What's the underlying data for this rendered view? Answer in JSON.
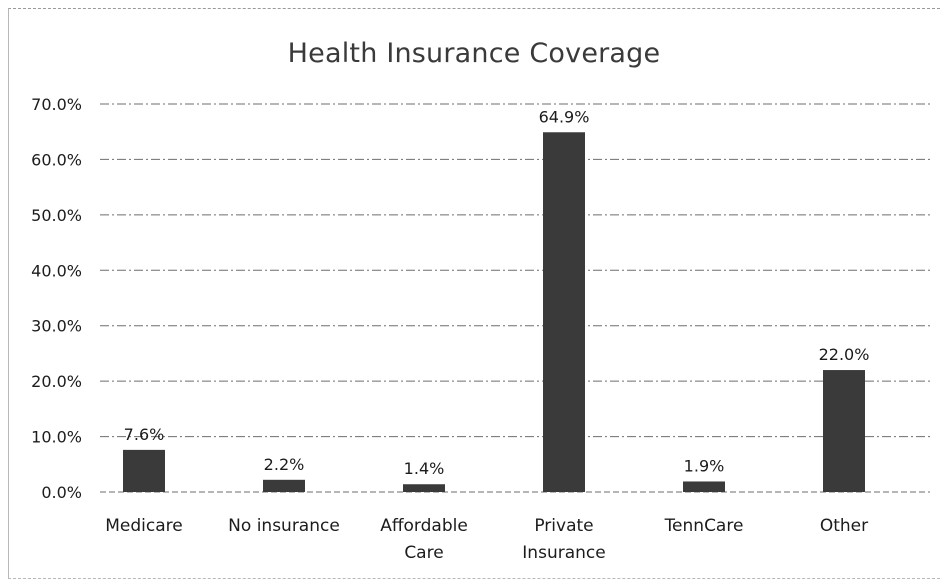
{
  "chart_data": {
    "type": "bar",
    "title": "Health Insurance Coverage",
    "categories": [
      "Medicare",
      "No insurance",
      "Affordable Care",
      "Private Insurance",
      "TennCare",
      "Other"
    ],
    "category_lines": [
      [
        "Medicare"
      ],
      [
        "No insurance"
      ],
      [
        "Affordable",
        "Care"
      ],
      [
        "Private",
        "Insurance"
      ],
      [
        "TennCare"
      ],
      [
        "Other"
      ]
    ],
    "values": [
      7.6,
      2.2,
      1.4,
      64.9,
      1.9,
      22.0
    ],
    "data_labels": [
      "7.6%",
      "2.2%",
      "1.4%",
      "64.9%",
      "1.9%",
      "22.0%"
    ],
    "y_ticks": [
      "0.0%",
      "10.0%",
      "20.0%",
      "30.0%",
      "40.0%",
      "50.0%",
      "60.0%",
      "70.0%"
    ],
    "ylim": [
      0,
      70
    ],
    "grid": true,
    "bar_color": "#3a3a3a",
    "grid_color": "#6e6e6e"
  }
}
